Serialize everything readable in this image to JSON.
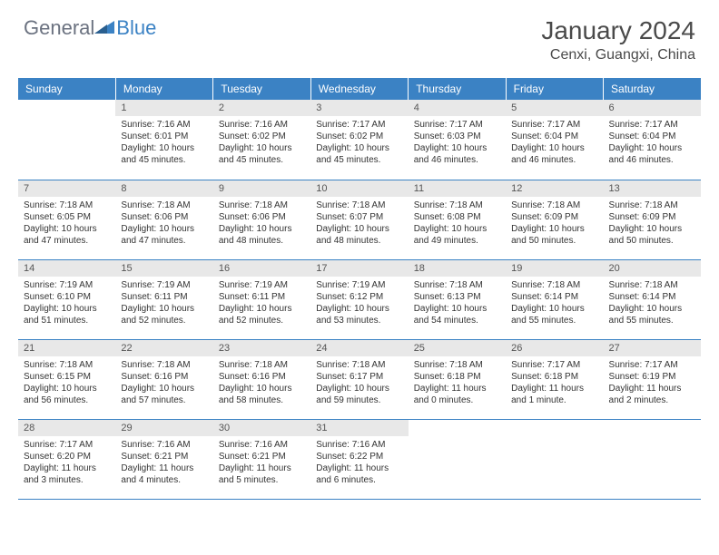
{
  "brand": {
    "part1": "General",
    "part2": "Blue"
  },
  "title": "January 2024",
  "location": "Cenxi, Guangxi, China",
  "colors": {
    "header_bg": "#3b82c4",
    "header_fg": "#ffffff",
    "daynum_bg": "#e8e8e8",
    "border": "#3b82c4",
    "text": "#333333"
  },
  "day_headers": [
    "Sunday",
    "Monday",
    "Tuesday",
    "Wednesday",
    "Thursday",
    "Friday",
    "Saturday"
  ],
  "weeks": [
    [
      {
        "n": "",
        "sr": "",
        "ss": "",
        "dl": ""
      },
      {
        "n": "1",
        "sr": "Sunrise: 7:16 AM",
        "ss": "Sunset: 6:01 PM",
        "dl": "Daylight: 10 hours and 45 minutes."
      },
      {
        "n": "2",
        "sr": "Sunrise: 7:16 AM",
        "ss": "Sunset: 6:02 PM",
        "dl": "Daylight: 10 hours and 45 minutes."
      },
      {
        "n": "3",
        "sr": "Sunrise: 7:17 AM",
        "ss": "Sunset: 6:02 PM",
        "dl": "Daylight: 10 hours and 45 minutes."
      },
      {
        "n": "4",
        "sr": "Sunrise: 7:17 AM",
        "ss": "Sunset: 6:03 PM",
        "dl": "Daylight: 10 hours and 46 minutes."
      },
      {
        "n": "5",
        "sr": "Sunrise: 7:17 AM",
        "ss": "Sunset: 6:04 PM",
        "dl": "Daylight: 10 hours and 46 minutes."
      },
      {
        "n": "6",
        "sr": "Sunrise: 7:17 AM",
        "ss": "Sunset: 6:04 PM",
        "dl": "Daylight: 10 hours and 46 minutes."
      }
    ],
    [
      {
        "n": "7",
        "sr": "Sunrise: 7:18 AM",
        "ss": "Sunset: 6:05 PM",
        "dl": "Daylight: 10 hours and 47 minutes."
      },
      {
        "n": "8",
        "sr": "Sunrise: 7:18 AM",
        "ss": "Sunset: 6:06 PM",
        "dl": "Daylight: 10 hours and 47 minutes."
      },
      {
        "n": "9",
        "sr": "Sunrise: 7:18 AM",
        "ss": "Sunset: 6:06 PM",
        "dl": "Daylight: 10 hours and 48 minutes."
      },
      {
        "n": "10",
        "sr": "Sunrise: 7:18 AM",
        "ss": "Sunset: 6:07 PM",
        "dl": "Daylight: 10 hours and 48 minutes."
      },
      {
        "n": "11",
        "sr": "Sunrise: 7:18 AM",
        "ss": "Sunset: 6:08 PM",
        "dl": "Daylight: 10 hours and 49 minutes."
      },
      {
        "n": "12",
        "sr": "Sunrise: 7:18 AM",
        "ss": "Sunset: 6:09 PM",
        "dl": "Daylight: 10 hours and 50 minutes."
      },
      {
        "n": "13",
        "sr": "Sunrise: 7:18 AM",
        "ss": "Sunset: 6:09 PM",
        "dl": "Daylight: 10 hours and 50 minutes."
      }
    ],
    [
      {
        "n": "14",
        "sr": "Sunrise: 7:19 AM",
        "ss": "Sunset: 6:10 PM",
        "dl": "Daylight: 10 hours and 51 minutes."
      },
      {
        "n": "15",
        "sr": "Sunrise: 7:19 AM",
        "ss": "Sunset: 6:11 PM",
        "dl": "Daylight: 10 hours and 52 minutes."
      },
      {
        "n": "16",
        "sr": "Sunrise: 7:19 AM",
        "ss": "Sunset: 6:11 PM",
        "dl": "Daylight: 10 hours and 52 minutes."
      },
      {
        "n": "17",
        "sr": "Sunrise: 7:19 AM",
        "ss": "Sunset: 6:12 PM",
        "dl": "Daylight: 10 hours and 53 minutes."
      },
      {
        "n": "18",
        "sr": "Sunrise: 7:18 AM",
        "ss": "Sunset: 6:13 PM",
        "dl": "Daylight: 10 hours and 54 minutes."
      },
      {
        "n": "19",
        "sr": "Sunrise: 7:18 AM",
        "ss": "Sunset: 6:14 PM",
        "dl": "Daylight: 10 hours and 55 minutes."
      },
      {
        "n": "20",
        "sr": "Sunrise: 7:18 AM",
        "ss": "Sunset: 6:14 PM",
        "dl": "Daylight: 10 hours and 55 minutes."
      }
    ],
    [
      {
        "n": "21",
        "sr": "Sunrise: 7:18 AM",
        "ss": "Sunset: 6:15 PM",
        "dl": "Daylight: 10 hours and 56 minutes."
      },
      {
        "n": "22",
        "sr": "Sunrise: 7:18 AM",
        "ss": "Sunset: 6:16 PM",
        "dl": "Daylight: 10 hours and 57 minutes."
      },
      {
        "n": "23",
        "sr": "Sunrise: 7:18 AM",
        "ss": "Sunset: 6:16 PM",
        "dl": "Daylight: 10 hours and 58 minutes."
      },
      {
        "n": "24",
        "sr": "Sunrise: 7:18 AM",
        "ss": "Sunset: 6:17 PM",
        "dl": "Daylight: 10 hours and 59 minutes."
      },
      {
        "n": "25",
        "sr": "Sunrise: 7:18 AM",
        "ss": "Sunset: 6:18 PM",
        "dl": "Daylight: 11 hours and 0 minutes."
      },
      {
        "n": "26",
        "sr": "Sunrise: 7:17 AM",
        "ss": "Sunset: 6:18 PM",
        "dl": "Daylight: 11 hours and 1 minute."
      },
      {
        "n": "27",
        "sr": "Sunrise: 7:17 AM",
        "ss": "Sunset: 6:19 PM",
        "dl": "Daylight: 11 hours and 2 minutes."
      }
    ],
    [
      {
        "n": "28",
        "sr": "Sunrise: 7:17 AM",
        "ss": "Sunset: 6:20 PM",
        "dl": "Daylight: 11 hours and 3 minutes."
      },
      {
        "n": "29",
        "sr": "Sunrise: 7:16 AM",
        "ss": "Sunset: 6:21 PM",
        "dl": "Daylight: 11 hours and 4 minutes."
      },
      {
        "n": "30",
        "sr": "Sunrise: 7:16 AM",
        "ss": "Sunset: 6:21 PM",
        "dl": "Daylight: 11 hours and 5 minutes."
      },
      {
        "n": "31",
        "sr": "Sunrise: 7:16 AM",
        "ss": "Sunset: 6:22 PM",
        "dl": "Daylight: 11 hours and 6 minutes."
      },
      {
        "n": "",
        "sr": "",
        "ss": "",
        "dl": ""
      },
      {
        "n": "",
        "sr": "",
        "ss": "",
        "dl": ""
      },
      {
        "n": "",
        "sr": "",
        "ss": "",
        "dl": ""
      }
    ]
  ]
}
